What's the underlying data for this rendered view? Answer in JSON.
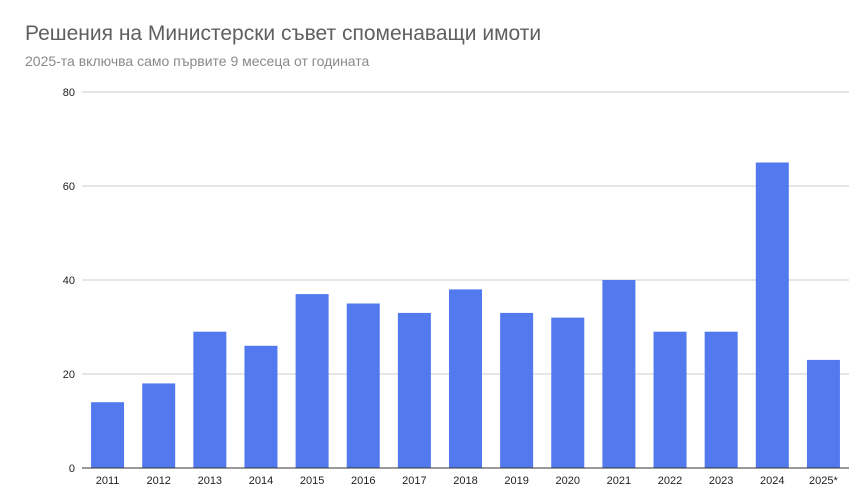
{
  "chart_data": {
    "type": "bar",
    "title": "Решения на Министерски съвет споменаващи имоти",
    "subtitle": "2025-та включва само първите 9 месеца от годината",
    "categories": [
      "2011",
      "2012",
      "2013",
      "2014",
      "2015",
      "2016",
      "2017",
      "2018",
      "2019",
      "2020",
      "2021",
      "2022",
      "2023",
      "2024",
      "2025*"
    ],
    "values": [
      14,
      18,
      29,
      26,
      37,
      35,
      33,
      38,
      33,
      32,
      40,
      29,
      29,
      65,
      23
    ],
    "yticks": [
      0,
      20,
      40,
      60,
      80
    ],
    "ylim": [
      0,
      80
    ],
    "xlabel": "",
    "ylabel": "",
    "grid": true,
    "legend": "none",
    "bar_color": "#5279ee"
  }
}
